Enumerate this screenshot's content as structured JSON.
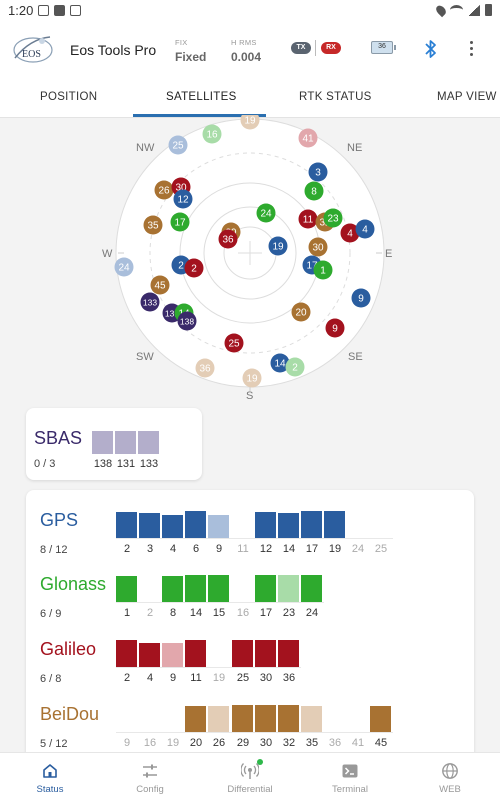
{
  "status_bar": {
    "time": "1:20",
    "left_icons": [
      "image-icon",
      "notification-app-icon",
      "sim-icon"
    ],
    "right_icons": [
      "location-icon",
      "wifi-icon",
      "signal-icon",
      "battery-icon"
    ]
  },
  "header": {
    "logo_text": "EOS",
    "app_title": "Eos Tools Pro",
    "fix_label": "FIX",
    "fix_value": "Fixed",
    "hrms_label": "H RMS",
    "hrms_value": "0.004",
    "tx_label": "TX",
    "rx_label": "RX",
    "battery_level": "36",
    "colors": {
      "tx": "#5a6470",
      "rx": "#c62828",
      "accent": "#2a6fb0"
    }
  },
  "tabs": [
    {
      "label": "POSITION",
      "active": false
    },
    {
      "label": "SATELLITES",
      "active": true
    },
    {
      "label": "RTK STATUS",
      "active": false
    },
    {
      "label": "MAP VIEW",
      "active": false
    }
  ],
  "skyplot": {
    "directions": [
      "NW",
      "NE",
      "W",
      "E",
      "SW",
      "SE",
      "S"
    ],
    "colors": {
      "gps": "#2a5d9f",
      "gps_weak": "#a9bedb",
      "glonass": "#2eaa2e",
      "glonass_weak": "#a8dca8",
      "galileo": "#a3121e",
      "galileo_weak": "#e2a7ac",
      "beidou": "#a87232",
      "beidou_weak": "#e3cdb6",
      "sbas": "#3a2a6a",
      "sbas_weak": "#b9b4cf"
    },
    "satellites": [
      {
        "id": "19",
        "c": "beidou_weak"
      },
      {
        "id": "16",
        "c": "glonass_weak"
      },
      {
        "id": "41",
        "c": "galileo_weak"
      },
      {
        "id": "25",
        "c": "gps_weak"
      },
      {
        "id": "3",
        "c": "gps"
      },
      {
        "id": "8",
        "c": "glonass"
      },
      {
        "id": "26",
        "c": "beidou"
      },
      {
        "id": "30",
        "c": "galileo"
      },
      {
        "id": "12",
        "c": "gps"
      },
      {
        "id": "17",
        "c": "glonass"
      },
      {
        "id": "35",
        "c": "beidou"
      },
      {
        "id": "24",
        "c": "glonass"
      },
      {
        "id": "11",
        "c": "galileo"
      },
      {
        "id": "32",
        "c": "beidou"
      },
      {
        "id": "23",
        "c": "glonass"
      },
      {
        "id": "4",
        "c": "galileo"
      },
      {
        "id": "4",
        "c": "gps"
      },
      {
        "id": "29",
        "c": "beidou"
      },
      {
        "id": "36",
        "c": "galileo"
      },
      {
        "id": "19",
        "c": "gps"
      },
      {
        "id": "30",
        "c": "beidou"
      },
      {
        "id": "17",
        "c": "gps"
      },
      {
        "id": "1",
        "c": "glonass"
      },
      {
        "id": "24",
        "c": "gps_weak"
      },
      {
        "id": "2",
        "c": "gps"
      },
      {
        "id": "2",
        "c": "galileo"
      },
      {
        "id": "45",
        "c": "beidou"
      },
      {
        "id": "133",
        "c": "sbas"
      },
      {
        "id": "131",
        "c": "sbas"
      },
      {
        "id": "14",
        "c": "glonass"
      },
      {
        "id": "138",
        "c": "sbas"
      },
      {
        "id": "9",
        "c": "gps"
      },
      {
        "id": "20",
        "c": "beidou"
      },
      {
        "id": "9",
        "c": "galileo"
      },
      {
        "id": "25",
        "c": "galileo"
      },
      {
        "id": "36",
        "c": "beidou_weak"
      },
      {
        "id": "19",
        "c": "beidou_weak"
      },
      {
        "id": "14",
        "c": "gps"
      },
      {
        "id": "2",
        "c": "glonass_weak"
      }
    ]
  },
  "sbas": {
    "name": "SBAS",
    "count": "0 / 3",
    "satellites": [
      {
        "id": "138",
        "level": 0.78,
        "used": false
      },
      {
        "id": "131",
        "level": 0.78,
        "used": false
      },
      {
        "id": "133",
        "level": 0.78,
        "used": false
      }
    ],
    "color": "#b3aecb",
    "label_color": "#333333",
    "name_color": "#3a2a6a"
  },
  "constellations": [
    {
      "key": "gps",
      "name": "GPS",
      "count": "8 / 12",
      "color": "#2a5d9f",
      "weak_color": "#a9bedb",
      "satellites": [
        {
          "id": "2",
          "level": 0.96,
          "state": "used"
        },
        {
          "id": "3",
          "level": 0.92,
          "state": "used"
        },
        {
          "id": "4",
          "level": 0.84,
          "state": "used"
        },
        {
          "id": "6",
          "level": 1.0,
          "state": "used"
        },
        {
          "id": "9",
          "level": 0.84,
          "state": "weak"
        },
        {
          "id": "11",
          "level": 0,
          "state": "none"
        },
        {
          "id": "12",
          "level": 0.96,
          "state": "used"
        },
        {
          "id": "14",
          "level": 0.92,
          "state": "used"
        },
        {
          "id": "17",
          "level": 1.0,
          "state": "used"
        },
        {
          "id": "19",
          "level": 1.0,
          "state": "used"
        },
        {
          "id": "24",
          "level": 0,
          "state": "none"
        },
        {
          "id": "25",
          "level": 0,
          "state": "none"
        }
      ]
    },
    {
      "key": "glonass",
      "name": "Glonass",
      "count": "6 / 9",
      "color": "#2eaa2e",
      "weak_color": "#a8dca8",
      "satellites": [
        {
          "id": "1",
          "level": 0.96,
          "state": "used"
        },
        {
          "id": "2",
          "level": 0,
          "state": "none"
        },
        {
          "id": "8",
          "level": 0.96,
          "state": "used"
        },
        {
          "id": "14",
          "level": 1.0,
          "state": "used"
        },
        {
          "id": "15",
          "level": 1.0,
          "state": "used"
        },
        {
          "id": "16",
          "level": 0,
          "state": "none"
        },
        {
          "id": "17",
          "level": 1.0,
          "state": "used"
        },
        {
          "id": "23",
          "level": 1.0,
          "state": "weak"
        },
        {
          "id": "24",
          "level": 1.0,
          "state": "used"
        }
      ]
    },
    {
      "key": "galileo",
      "name": "Galileo",
      "count": "6 / 8",
      "color": "#a3121e",
      "weak_color": "#e2a7ac",
      "satellites": [
        {
          "id": "2",
          "level": 1.0,
          "state": "used"
        },
        {
          "id": "4",
          "level": 0.88,
          "state": "used"
        },
        {
          "id": "9",
          "level": 0.88,
          "state": "weak"
        },
        {
          "id": "11",
          "level": 1.0,
          "state": "used"
        },
        {
          "id": "19",
          "level": 0,
          "state": "none"
        },
        {
          "id": "25",
          "level": 1.0,
          "state": "used"
        },
        {
          "id": "30",
          "level": 1.0,
          "state": "used"
        },
        {
          "id": "36",
          "level": 1.0,
          "state": "used"
        }
      ]
    },
    {
      "key": "beidou",
      "name": "BeiDou",
      "count": "5 / 12",
      "color": "#a87232",
      "weak_color": "#e3cdb6",
      "satellites": [
        {
          "id": "9",
          "level": 0,
          "state": "none"
        },
        {
          "id": "16",
          "level": 0,
          "state": "none"
        },
        {
          "id": "19",
          "level": 0,
          "state": "none"
        },
        {
          "id": "20",
          "level": 0.96,
          "state": "used"
        },
        {
          "id": "26",
          "level": 0.96,
          "state": "weak"
        },
        {
          "id": "29",
          "level": 1.0,
          "state": "used"
        },
        {
          "id": "30",
          "level": 1.0,
          "state": "used"
        },
        {
          "id": "32",
          "level": 1.0,
          "state": "used"
        },
        {
          "id": "35",
          "level": 0.96,
          "state": "weak"
        },
        {
          "id": "36",
          "level": 0,
          "state": "none"
        },
        {
          "id": "41",
          "level": 0,
          "state": "none"
        },
        {
          "id": "45",
          "level": 0.96,
          "state": "used"
        }
      ]
    }
  ],
  "bottom_nav": [
    {
      "label": "Status",
      "icon": "home-icon",
      "active": true
    },
    {
      "label": "Config",
      "icon": "sliders-icon",
      "active": false
    },
    {
      "label": "Differential",
      "icon": "antenna-icon",
      "active": false,
      "dot": true
    },
    {
      "label": "Terminal",
      "icon": "terminal-icon",
      "active": false
    },
    {
      "label": "WEB",
      "icon": "globe-icon",
      "active": false
    }
  ]
}
